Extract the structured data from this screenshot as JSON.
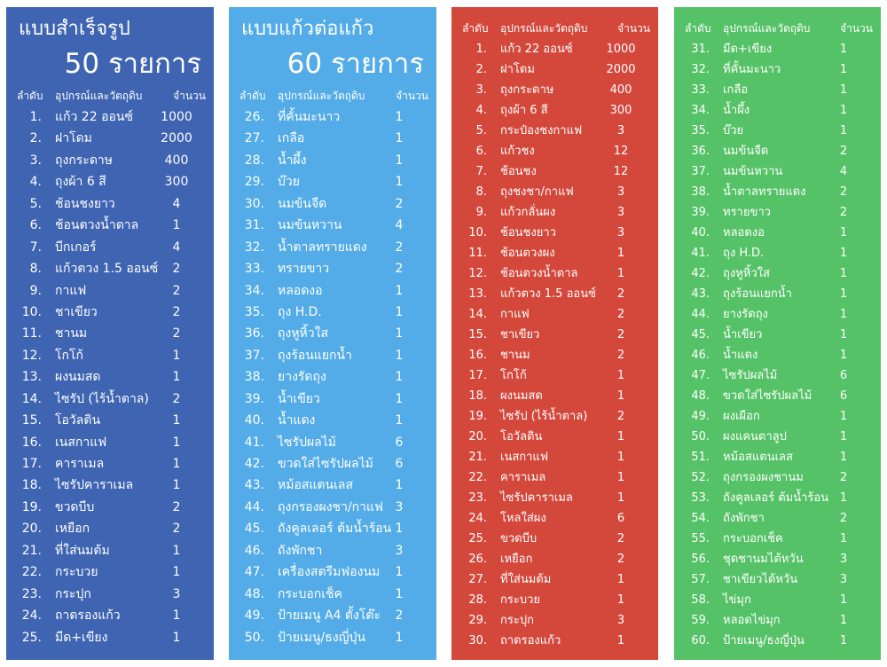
{
  "headers": {
    "no": "ลำดับ",
    "item": "อุปกรณ์และวัตถุดิบ",
    "qty": "จำนวน"
  },
  "panels": [
    {
      "title1": "แบบสำเร็จรูป",
      "title2": "50 รายการ",
      "color": "#3e64b2",
      "rows": [
        [
          "1.",
          "แก้ว 22 ออนซ์",
          "1000"
        ],
        [
          "2.",
          "ฝาโดม",
          "2000"
        ],
        [
          "3.",
          "ถุงกระดาษ",
          "400"
        ],
        [
          "4.",
          "ถุงผ้า 6 สี",
          "300"
        ],
        [
          "5.",
          "ช้อนชงยาว",
          "4"
        ],
        [
          "6.",
          "ช้อนตวงน้ำตาล",
          "1"
        ],
        [
          "7.",
          "บีกเกอร์",
          "4"
        ],
        [
          "8.",
          "แก้วตวง 1.5 ออนซ์",
          "2"
        ],
        [
          "9.",
          "กาแฟ",
          "2"
        ],
        [
          "10.",
          "ชาเขียว",
          "2"
        ],
        [
          "11.",
          "ชานม",
          "2"
        ],
        [
          "12.",
          "โกโก้",
          "1"
        ],
        [
          "13.",
          "ผงนมสด",
          "1"
        ],
        [
          "14.",
          "ไซรัป (ไร้น้ำตาล)",
          "2"
        ],
        [
          "15.",
          "โอวัลติน",
          "1"
        ],
        [
          "16.",
          "เนสกาแฟ",
          "1"
        ],
        [
          "17.",
          "คาราเมล",
          "1"
        ],
        [
          "18.",
          "ไซรัปคาราเมล",
          "1"
        ],
        [
          "19.",
          "ขวดบีบ",
          "2"
        ],
        [
          "20.",
          "เหยือก",
          "2"
        ],
        [
          "21.",
          "ที่ใส่นมต้ม",
          "1"
        ],
        [
          "22.",
          "กระบวย",
          "1"
        ],
        [
          "23.",
          "กระปุก",
          "3"
        ],
        [
          "24.",
          "ถาดรองแก้ว",
          "1"
        ],
        [
          "25.",
          "มีด+เขียง",
          "1"
        ]
      ]
    },
    {
      "title1": "แบบแก้วต่อแก้ว",
      "title2": "60 รายการ",
      "color": "#53ace8",
      "rows": [
        [
          "26.",
          "ที่คั้นมะนาว",
          "1"
        ],
        [
          "27.",
          "เกลือ",
          "1"
        ],
        [
          "28.",
          "น้ำผึ้ง",
          "1"
        ],
        [
          "29.",
          "บ๊วย",
          "1"
        ],
        [
          "30.",
          "นมข้นจืด",
          "2"
        ],
        [
          "31.",
          "นมข้นหวาน",
          "4"
        ],
        [
          "32.",
          "น้ำตาลทรายแดง",
          "2"
        ],
        [
          "33.",
          "ทรายขาว",
          "2"
        ],
        [
          "34.",
          "หลอดงอ",
          "1"
        ],
        [
          "35.",
          "ถุง H.D.",
          "1"
        ],
        [
          "36.",
          "ถุงหูหิ้วใส",
          "1"
        ],
        [
          "37.",
          "ถุงร้อนแยกน้ำ",
          "1"
        ],
        [
          "38.",
          "ยางรัดถุง",
          "1"
        ],
        [
          "39.",
          "น้ำเขียว",
          "1"
        ],
        [
          "40.",
          "น้ำแดง",
          "1"
        ],
        [
          "41.",
          "ไซรัปผลไม้",
          "6"
        ],
        [
          "42.",
          "ขวดใส่ไซรัปผลไม้",
          "6"
        ],
        [
          "43.",
          "หม้อสแตนเลส",
          "1"
        ],
        [
          "44.",
          "ถุงกรองผงชา/กาแฟ",
          "3"
        ],
        [
          "45.",
          "ถังคูลเลอร์ ต้มน้ำร้อน",
          "1"
        ],
        [
          "46.",
          "ถังพักชา",
          "3"
        ],
        [
          "47.",
          "เครื่องสตรีมฟองนม",
          "1"
        ],
        [
          "48.",
          "กระบอกเช็ค",
          "1"
        ],
        [
          "49.",
          "ป้ายเมนู A4 ตั้งโต๊ะ",
          "2"
        ],
        [
          "50.",
          "ป้ายเมนู/ธงญี่ปุ่น",
          "1"
        ]
      ]
    },
    {
      "title1": "",
      "title2": "",
      "color": "#d4483c",
      "rows": [
        [
          "1.",
          "แก้ว 22 ออนซ์",
          "1000"
        ],
        [
          "2.",
          "ฝาโดม",
          "2000"
        ],
        [
          "3.",
          "ถุงกระดาษ",
          "400"
        ],
        [
          "4.",
          "ถุงผ้า 6 สี",
          "300"
        ],
        [
          "5.",
          "กระป๋องชงกาแฟ",
          "3"
        ],
        [
          "6.",
          "แก้วชง",
          "12"
        ],
        [
          "7.",
          "ช้อนชง",
          "12"
        ],
        [
          "8.",
          "ถุงชงชา/กาแฟ",
          "3"
        ],
        [
          "9.",
          "แก้วกลั่นผง",
          "3"
        ],
        [
          "10.",
          "ช้อนชงยาว",
          "3"
        ],
        [
          "11.",
          "ช้อนตวงผง",
          "1"
        ],
        [
          "12.",
          "ช้อนตวงน้ำตาล",
          "1"
        ],
        [
          "13.",
          "แก้วตวง 1.5 ออนซ์",
          "2"
        ],
        [
          "14.",
          "กาแฟ",
          "2"
        ],
        [
          "15.",
          "ชาเขียว",
          "2"
        ],
        [
          "16.",
          "ชานม",
          "2"
        ],
        [
          "17.",
          "โกโก้",
          "1"
        ],
        [
          "18.",
          "ผงนมสด",
          "1"
        ],
        [
          "19.",
          "ไซรัป (ไร้น้ำตาล)",
          "2"
        ],
        [
          "20.",
          "โอวัลติน",
          "1"
        ],
        [
          "21.",
          "เนสกาแฟ",
          "1"
        ],
        [
          "22.",
          "คาราเมล",
          "1"
        ],
        [
          "23.",
          "ไซรัปคาราเมล",
          "1"
        ],
        [
          "24.",
          "โหลใส่ผง",
          "6"
        ],
        [
          "25.",
          "ขวดบีบ",
          "2"
        ],
        [
          "26.",
          "เหยือก",
          "2"
        ],
        [
          "27.",
          "ที่ใส่นมต้ม",
          "1"
        ],
        [
          "28.",
          "กระบวย",
          "1"
        ],
        [
          "29.",
          "กระปุก",
          "3"
        ],
        [
          "30.",
          "ถาดรองแก้ว",
          "1"
        ]
      ]
    },
    {
      "title1": "",
      "title2": "",
      "color": "#55c267",
      "rows": [
        [
          "31.",
          "มีด+เขียง",
          "1"
        ],
        [
          "32.",
          "ที่คั้นมะนาว",
          "1"
        ],
        [
          "33.",
          "เกลือ",
          "1"
        ],
        [
          "34.",
          "น้ำผึ้ง",
          "1"
        ],
        [
          "35.",
          "บ๊วย",
          "1"
        ],
        [
          "36.",
          "นมข้นจืด",
          "2"
        ],
        [
          "37.",
          "นมข้นหวาน",
          "4"
        ],
        [
          "38.",
          "น้ำตาลทรายแดง",
          "2"
        ],
        [
          "39.",
          "ทรายขาว",
          "2"
        ],
        [
          "40.",
          "หลอดงอ",
          "1"
        ],
        [
          "41.",
          "ถุง H.D.",
          "1"
        ],
        [
          "42.",
          "ถุงหูหิ้วใส",
          "1"
        ],
        [
          "43.",
          "ถุงร้อนแยกน้ำ",
          "1"
        ],
        [
          "44.",
          "ยางรัดถุง",
          "1"
        ],
        [
          "45.",
          "น้ำเขียว",
          "1"
        ],
        [
          "46.",
          "น้ำแดง",
          "1"
        ],
        [
          "47.",
          "ไซรัปผลไม้",
          "6"
        ],
        [
          "48.",
          "ขวดใส่ไซรัปผลไม้",
          "6"
        ],
        [
          "49.",
          "ผงเผือก",
          "1"
        ],
        [
          "50.",
          "ผงแคนตาลูป",
          "1"
        ],
        [
          "51.",
          "หม้อสแตนเลส",
          "1"
        ],
        [
          "52.",
          "ถุงกรองผงชานม",
          "2"
        ],
        [
          "53.",
          "ถังคูลเลอร์ ต้มน้ำร้อน",
          "1"
        ],
        [
          "54.",
          "ถังพักชา",
          "2"
        ],
        [
          "55.",
          "กระบอกเช็ค",
          "1"
        ],
        [
          "56.",
          "ชุดชานมไต้หวัน",
          "3"
        ],
        [
          "57.",
          "ชาเขียวไต้หวัน",
          "3"
        ],
        [
          "58.",
          "ไข่มุก",
          "1"
        ],
        [
          "59.",
          "หลอดไข่มุก",
          "1"
        ],
        [
          "60.",
          "ป้ายเมนู/ธงญี่ปุ่น",
          "1"
        ]
      ]
    }
  ]
}
